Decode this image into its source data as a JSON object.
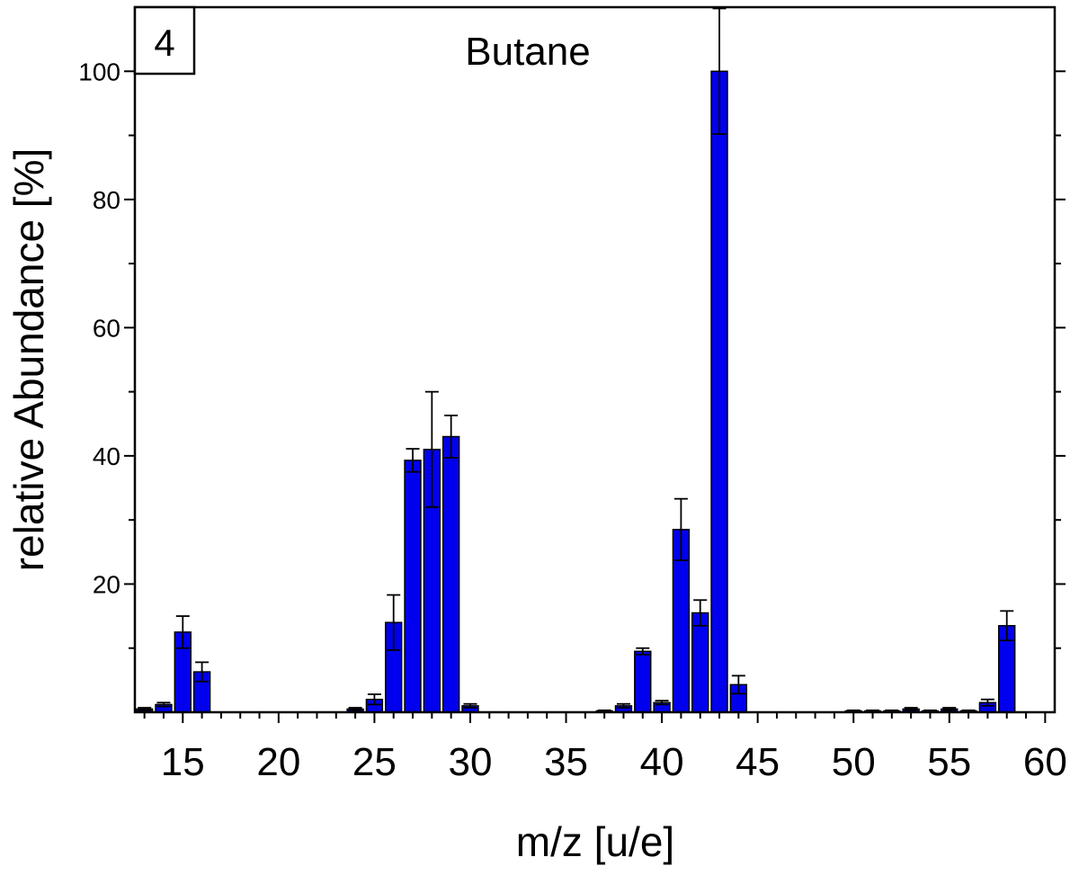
{
  "chart_data": {
    "type": "bar",
    "title": "Butane",
    "panel_label": "4",
    "xlabel": "m/z [u/e]",
    "ylabel": "relative Abundance [%]",
    "xlim": [
      12.5,
      60.5
    ],
    "ylim": [
      0,
      110
    ],
    "x_ticks": [
      "15",
      "20",
      "25",
      "30",
      "35",
      "40",
      "45",
      "50",
      "55",
      "60"
    ],
    "y_ticks": [
      "20",
      "40",
      "60",
      "80",
      "100"
    ],
    "bar_color": "#0000ee",
    "x": [
      13,
      14,
      15,
      16,
      24,
      25,
      26,
      27,
      28,
      29,
      30,
      37,
      38,
      39,
      40,
      41,
      42,
      43,
      44,
      50,
      51,
      52,
      53,
      54,
      55,
      56,
      57,
      58
    ],
    "values": [
      0.5,
      1.2,
      12.5,
      6.3,
      0.5,
      2.0,
      14.0,
      39.3,
      41.0,
      43.0,
      1.0,
      0.2,
      1.0,
      9.5,
      1.5,
      28.5,
      15.5,
      100,
      4.3,
      0.2,
      0.2,
      0.2,
      0.5,
      0.2,
      0.5,
      0.2,
      1.5,
      13.5
    ],
    "errors": [
      0.2,
      0.3,
      2.5,
      1.5,
      0.2,
      0.8,
      4.3,
      1.8,
      9.0,
      3.3,
      0.3,
      0.1,
      0.3,
      0.5,
      0.3,
      4.8,
      2.0,
      9.8,
      1.4,
      0.1,
      0.1,
      0.1,
      0.2,
      0.1,
      0.2,
      0.1,
      0.5,
      2.3
    ]
  }
}
